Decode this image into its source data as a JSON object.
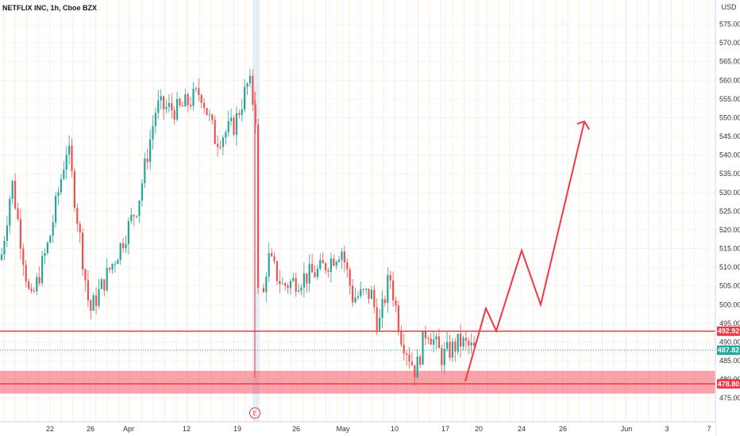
{
  "header": {
    "symbol": "NETFLIX INC, 1h, Cboe BZX",
    "currency": "USD"
  },
  "chart_data": {
    "type": "candlestick",
    "x_ticks": [
      "22",
      "26",
      "Apr",
      "12",
      "19",
      "26",
      "May",
      "10",
      "17",
      "20",
      "24",
      "26",
      "Jun",
      "3",
      "7"
    ],
    "y_ticks": [
      475,
      480,
      485,
      490,
      495,
      500,
      505,
      510,
      515,
      520,
      525,
      530,
      535,
      540,
      545,
      550,
      555,
      560,
      565,
      570,
      575
    ],
    "ylim": [
      472.5,
      580
    ],
    "price_labels": [
      {
        "value": 492.92,
        "text": "492.92",
        "color": "#f23645"
      },
      {
        "value": 487.82,
        "text": "487.82",
        "color": "#26a69a"
      },
      {
        "value": 478.8,
        "text": "478.80",
        "color": "#f23645"
      }
    ],
    "support_zone": [
      476.2,
      482.3
    ],
    "resistance_line": 492.92,
    "support_line": 478.8,
    "earnings_marker": "E",
    "projection_path": [
      [
        0,
        479.5
      ],
      [
        1,
        499
      ],
      [
        2,
        493
      ],
      [
        3,
        514.5
      ],
      [
        4,
        500
      ],
      [
        5,
        549
      ]
    ],
    "price_path": [
      [
        0.0,
        512
      ],
      [
        0.015,
        533
      ],
      [
        0.04,
        500
      ],
      [
        0.065,
        517
      ],
      [
        0.09,
        543
      ],
      [
        0.12,
        498
      ],
      [
        0.16,
        515
      ],
      [
        0.185,
        527
      ],
      [
        0.21,
        553
      ],
      [
        0.24,
        552
      ],
      [
        0.27,
        557
      ],
      [
        0.29,
        544
      ],
      [
        0.315,
        548
      ],
      [
        0.335,
        560
      ],
      [
        0.345,
        549
      ],
      [
        0.348,
        490
      ],
      [
        0.36,
        513
      ],
      [
        0.38,
        505
      ],
      [
        0.405,
        507
      ],
      [
        0.43,
        509
      ],
      [
        0.46,
        515
      ],
      [
        0.475,
        502
      ],
      [
        0.5,
        503
      ],
      [
        0.51,
        494
      ],
      [
        0.525,
        508
      ],
      [
        0.54,
        492
      ],
      [
        0.56,
        482
      ],
      [
        0.575,
        494
      ],
      [
        0.595,
        486
      ],
      [
        0.62,
        490
      ],
      [
        0.64,
        487.8
      ]
    ],
    "colors": {
      "up": "#26a69a",
      "down": "#ef5350",
      "drawing": "#f23645"
    }
  }
}
